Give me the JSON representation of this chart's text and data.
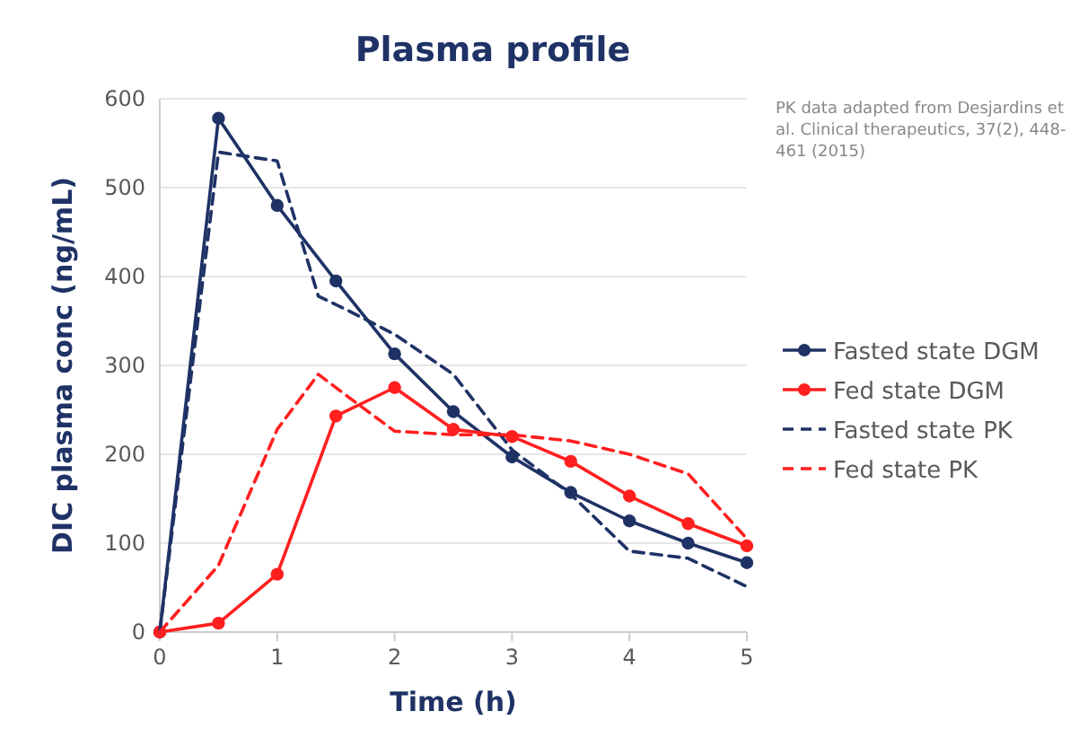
{
  "chart_data": {
    "type": "line",
    "title": "Plasma profile",
    "xlabel": "Time (h)",
    "ylabel": "DIC plasma conc (ng/mL)",
    "xlim": [
      0,
      5
    ],
    "xticks": [
      0,
      1,
      2,
      3,
      4,
      5
    ],
    "ylim": [
      0,
      600
    ],
    "yticks": [
      0,
      100,
      200,
      300,
      400,
      500,
      600
    ],
    "grid": "y",
    "legend": "right",
    "annotations": [
      "PK data adapted from Desjardins et al. Clinical therapeutics, 37(2), 448-461 (2015)"
    ],
    "series": [
      {
        "name": "Fasted state DGM",
        "color": "#1f3266",
        "marker": "circle",
        "line_style": "solid",
        "x": [
          0,
          0.5,
          1,
          1.5,
          2,
          2.5,
          3,
          3.5,
          4,
          4.5,
          5
        ],
        "values": [
          0,
          578,
          480,
          395,
          313,
          248,
          197,
          157,
          125,
          100,
          78
        ]
      },
      {
        "name": "Fed state DGM",
        "color": "#ff1f1f",
        "marker": "circle",
        "line_style": "solid",
        "x": [
          0,
          0.5,
          1,
          1.5,
          2,
          2.5,
          3,
          3.5,
          4,
          4.5,
          5
        ],
        "values": [
          0,
          10,
          65,
          243,
          275,
          228,
          220,
          192,
          153,
          122,
          97
        ]
      },
      {
        "name": "Fasted state PK",
        "color": "#1f3266",
        "marker": "none",
        "line_style": "dashed",
        "x": [
          0,
          0.5,
          1,
          1.35,
          1.6,
          2,
          2.5,
          3,
          3.5,
          4,
          4.5,
          5
        ],
        "values": [
          0,
          540,
          530,
          378,
          362,
          335,
          290,
          205,
          155,
          91,
          83,
          51
        ]
      },
      {
        "name": "Fed state PK",
        "color": "#ff1f1f",
        "marker": "none",
        "line_style": "dashed",
        "x": [
          0,
          0.5,
          1,
          1.35,
          1.6,
          2,
          2.5,
          3,
          3.5,
          4,
          4.5,
          5
        ],
        "values": [
          0,
          75,
          228,
          290,
          265,
          226,
          222,
          222,
          215,
          200,
          178,
          105
        ]
      }
    ]
  }
}
